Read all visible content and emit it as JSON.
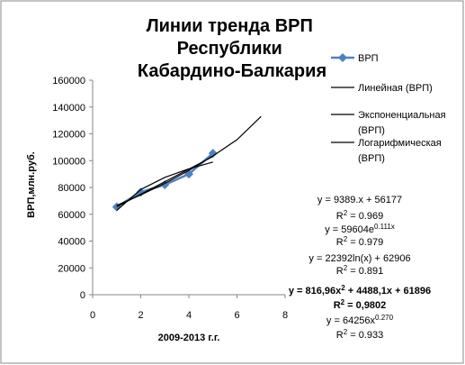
{
  "chart_data": {
    "type": "line",
    "title": "Линии тренда ВРП Республики Кабардино-Балкария",
    "x_label": "2009-2013 г.г.",
    "y_label": "ВРП,млн.руб.",
    "xlim": [
      0,
      8
    ],
    "xticks": [
      0,
      2,
      4,
      6,
      8
    ],
    "ylim": [
      0,
      160000
    ],
    "yticks": [
      0,
      20000,
      40000,
      60000,
      80000,
      100000,
      120000,
      140000,
      160000
    ],
    "grid": false,
    "legend": "right",
    "series": [
      {
        "name": "ВРП",
        "color": "#4f81bd",
        "marker": "diamond",
        "x": [
          1,
          2,
          3,
          4,
          5
        ],
        "values": [
          65500,
          76500,
          82000,
          90000,
          105500
        ]
      },
      {
        "name": "Линейная (ВРП)",
        "color": "#000000",
        "x": [
          1,
          5
        ],
        "values": [
          65566,
          103122
        ]
      },
      {
        "name": "Экспоненциальная (ВРП)",
        "color": "#000000",
        "x": [
          1,
          2,
          3,
          4,
          5,
          6,
          7
        ],
        "values": [
          66600,
          74400,
          83000,
          92700,
          103500,
          115600,
          133000
        ]
      },
      {
        "name": "Логарифмическая (ВРП)",
        "color": "#000000",
        "x": [
          1,
          2,
          3,
          4,
          5
        ],
        "values": [
          62906,
          78427,
          87506,
          93948,
          98944
        ]
      }
    ],
    "annotations": [
      {
        "parts": [
          "y = 9389.x + 56177"
        ],
        "bold": false
      },
      {
        "parts": [
          "R",
          "2",
          " = 0.969"
        ],
        "bold": false
      },
      {
        "parts": [
          "y = 59604e",
          "0.111x"
        ],
        "bold": false
      },
      {
        "parts": [
          "R",
          "2",
          " = 0.979"
        ],
        "bold": false
      },
      {
        "parts": [
          "y = 22392ln(x) + 62906"
        ],
        "bold": false
      },
      {
        "parts": [
          "R",
          "2",
          " = 0.891"
        ],
        "bold": false
      },
      {
        "parts": [
          "y = 816,96x",
          "2",
          " + 4488,1x + 61896"
        ],
        "bold": true
      },
      {
        "parts": [
          "R",
          "2",
          " = 0,9802"
        ],
        "bold": true
      },
      {
        "parts": [
          "y = 64256x",
          "0.270"
        ],
        "bold": false
      },
      {
        "parts": [
          "R",
          "2",
          " = 0.933"
        ],
        "bold": false
      }
    ]
  }
}
